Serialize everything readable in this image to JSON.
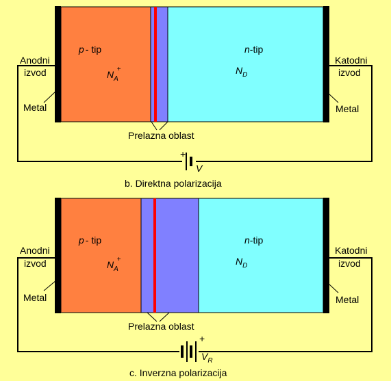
{
  "colors": {
    "background": "#FFFF99",
    "p_region": "#FF8040",
    "depletion": "#8080FF",
    "junction_line": "#FF0000",
    "n_region": "#80FFFF",
    "metal": "#000000",
    "wire": "#000000"
  },
  "diagrams": [
    {
      "id": "forward",
      "p_type": {
        "prefix": "p",
        "suffix": "- tip",
        "doping": "N",
        "doping_sub": "A",
        "doping_sup": "+"
      },
      "n_type": {
        "prefix": "n",
        "suffix": "-tip",
        "doping": "N",
        "doping_sub": "D"
      },
      "anode": {
        "line1": "Anodni",
        "line2": "izvod",
        "metal": "Metal"
      },
      "cathode": {
        "line1": "Katodni",
        "line2": "izvod",
        "metal": "Metal"
      },
      "junction_label": "Prelazna oblast",
      "battery": {
        "plus": "+",
        "symbol": "V",
        "symbol_sub": ""
      },
      "caption": "b. Direktna polarizacija"
    },
    {
      "id": "reverse",
      "p_type": {
        "prefix": "p",
        "suffix": "- tip",
        "doping": "N",
        "doping_sub": "A",
        "doping_sup": "+"
      },
      "n_type": {
        "prefix": "n",
        "suffix": "-tip",
        "doping": "N",
        "doping_sub": "D"
      },
      "anode": {
        "line1": "Anodni",
        "line2": "izvod",
        "metal": "Metal"
      },
      "cathode": {
        "line1": "Katodni",
        "line2": "izvod",
        "metal": "Metal"
      },
      "junction_label": "Prelazna oblast",
      "battery": {
        "plus": "+",
        "symbol": "V",
        "symbol_sub": "R"
      },
      "caption": "c. Inverzna polarizacija"
    }
  ]
}
